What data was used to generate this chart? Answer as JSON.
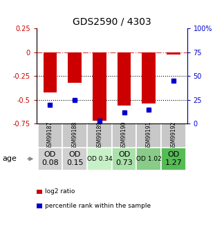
{
  "title": "GDS2590 / 4303",
  "samples": [
    "GSM99187",
    "GSM99188",
    "GSM99189",
    "GSM99190",
    "GSM99191",
    "GSM99192"
  ],
  "log2_ratio": [
    -0.42,
    -0.32,
    -0.72,
    -0.56,
    -0.54,
    -0.02
  ],
  "percentile_rank": [
    20,
    25,
    3,
    12,
    15,
    45
  ],
  "ylim_left": [
    -0.75,
    0.25
  ],
  "ylim_right": [
    0,
    100
  ],
  "bar_color": "#cc0000",
  "dot_color": "#0000cc",
  "hlines_dotted": [
    -0.25,
    -0.5
  ],
  "age_labels": [
    "OD\n0.08",
    "OD\n0.15",
    "OD 0.34",
    "OD\n0.73",
    "OD 1.02",
    "OD\n1.27"
  ],
  "age_bg_colors": [
    "#d0d0d0",
    "#d0d0d0",
    "#c8f0c8",
    "#aae0aa",
    "#88cc88",
    "#55bb55"
  ],
  "age_fontsize": [
    8,
    8,
    6.5,
    8,
    6.5,
    8
  ],
  "sample_bg_color": "#c8c8c8",
  "legend_items": [
    "log2 ratio",
    "percentile rank within the sample"
  ],
  "legend_colors": [
    "#cc0000",
    "#0000cc"
  ],
  "left_yticks": [
    0.25,
    0,
    -0.25,
    -0.5,
    -0.75
  ],
  "left_yticklabels": [
    "0.25",
    "0",
    "-0.25",
    "-0.5",
    "-0.75"
  ],
  "right_yticks": [
    0,
    25,
    50,
    75,
    100
  ],
  "right_yticklabels": [
    "0",
    "25",
    "50",
    "75",
    "100%"
  ]
}
